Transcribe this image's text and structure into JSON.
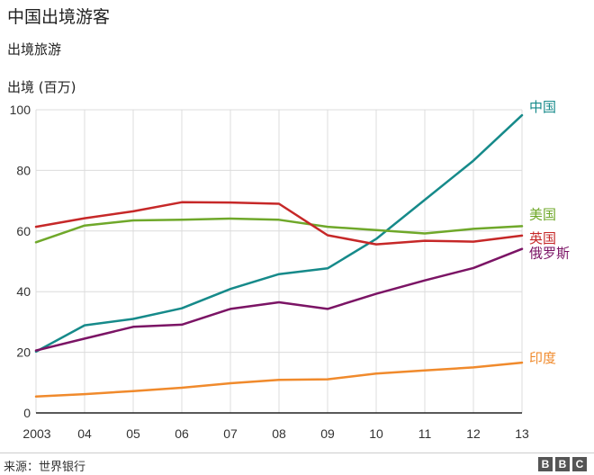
{
  "title": "中国出境游客",
  "subtitle": "出境旅游",
  "source": "来源：世界银行",
  "logo": [
    "B",
    "B",
    "C"
  ],
  "chart_data": {
    "type": "line",
    "ylabel": "出境 (百万)",
    "x": [
      "2003",
      "04",
      "05",
      "06",
      "07",
      "08",
      "09",
      "10",
      "11",
      "12",
      "13"
    ],
    "ylim": [
      0,
      100
    ],
    "yticks": [
      0,
      20,
      40,
      60,
      80,
      100
    ],
    "grid": true,
    "legend_placement": "right, at line ends",
    "series": [
      {
        "name": "中国",
        "color": "#168a8a",
        "values": [
          20.2,
          28.9,
          31.0,
          34.5,
          40.9,
          45.8,
          47.7,
          57.4,
          70.3,
          83.2,
          98.2
        ]
      },
      {
        "name": "美国",
        "color": "#6fa82a",
        "values": [
          56.3,
          61.8,
          63.5,
          63.7,
          64.1,
          63.7,
          61.4,
          60.3,
          59.2,
          60.7,
          61.6
        ]
      },
      {
        "name": "英国",
        "color": "#c62828",
        "values": [
          61.4,
          64.2,
          66.5,
          69.5,
          69.4,
          69.0,
          58.6,
          55.6,
          56.8,
          56.5,
          58.5
        ]
      },
      {
        "name": "俄罗斯",
        "color": "#7b1465",
        "values": [
          20.6,
          24.5,
          28.4,
          29.1,
          34.3,
          36.5,
          34.3,
          39.3,
          43.7,
          47.8,
          54.1
        ]
      },
      {
        "name": "印度",
        "color": "#f08a2c",
        "values": [
          5.4,
          6.2,
          7.2,
          8.3,
          9.8,
          10.9,
          11.1,
          13.0,
          14.0,
          15.0,
          16.6
        ]
      }
    ]
  }
}
